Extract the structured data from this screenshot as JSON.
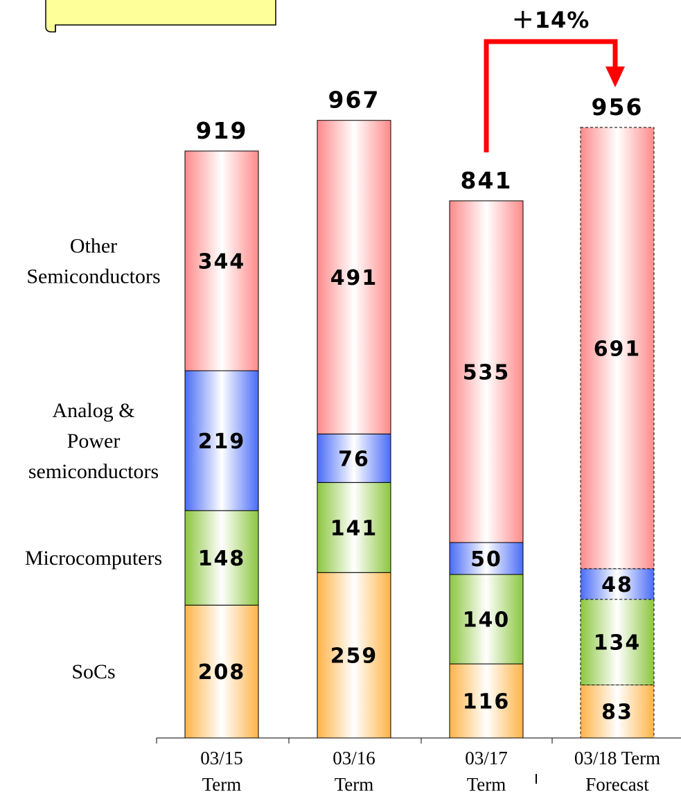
{
  "chart_data": {
    "type": "bar",
    "stacked": true,
    "categories": [
      [
        "03/15",
        "Term"
      ],
      [
        "03/16",
        "Term"
      ],
      [
        "03/17",
        "Term"
      ],
      [
        "03/18 Term",
        "Forecast"
      ]
    ],
    "forecast": [
      false,
      false,
      false,
      true
    ],
    "series": [
      {
        "name": [
          "SoCs"
        ],
        "color": "#FFB347",
        "values": [
          208,
          259,
          116,
          83
        ]
      },
      {
        "name": [
          "Microcomputers"
        ],
        "color": "#8CC63F",
        "values": [
          148,
          141,
          140,
          134
        ]
      },
      {
        "name": [
          "Analog &",
          "Power",
          "semiconductors"
        ],
        "color": "#4A6CF7",
        "values": [
          219,
          76,
          50,
          48
        ]
      },
      {
        "name": [
          "Other",
          "Semiconductors"
        ],
        "color": "#FF8A8A",
        "values": [
          344,
          491,
          535,
          691
        ]
      }
    ],
    "totals": [
      919,
      967,
      841,
      956
    ],
    "annotation": {
      "text": "＋14%",
      "from_category": 2,
      "to_category": 3
    },
    "ylim": [
      0,
      1000
    ],
    "grid": false,
    "legend": "left"
  }
}
